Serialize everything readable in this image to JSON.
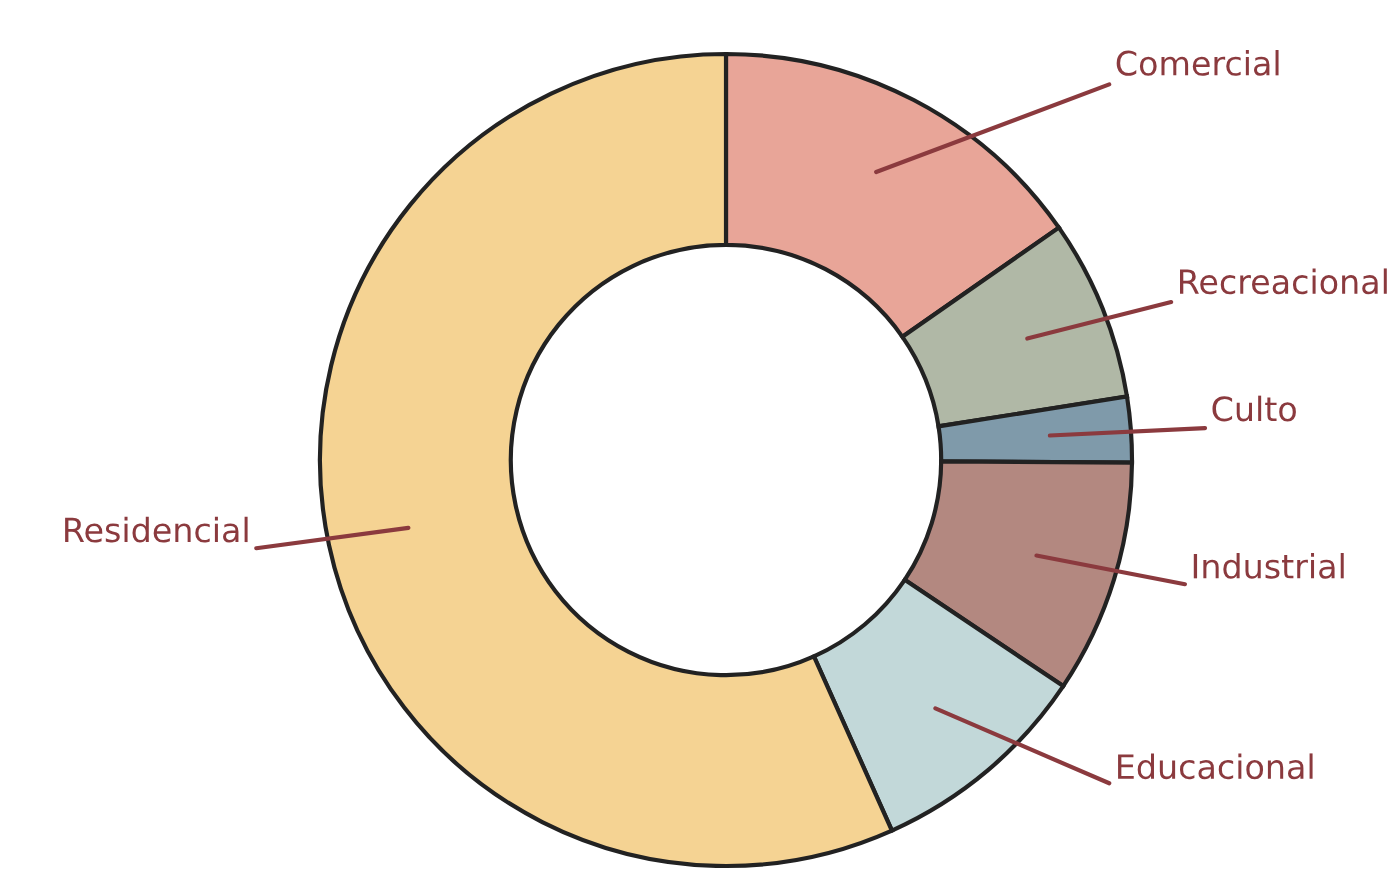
{
  "chart_data": {
    "type": "donut",
    "categories": [
      "Comercial",
      "Recreacional",
      "Culto",
      "Industrial",
      "Educacional",
      "Residencial"
    ],
    "values": [
      15.3,
      7.2,
      2.6,
      9.3,
      8.9,
      56.7
    ],
    "colors": [
      "#e8a598",
      "#b0b8a6",
      "#7f9aaa",
      "#b38880",
      "#c2d8d9",
      "#f5d393"
    ]
  }
}
